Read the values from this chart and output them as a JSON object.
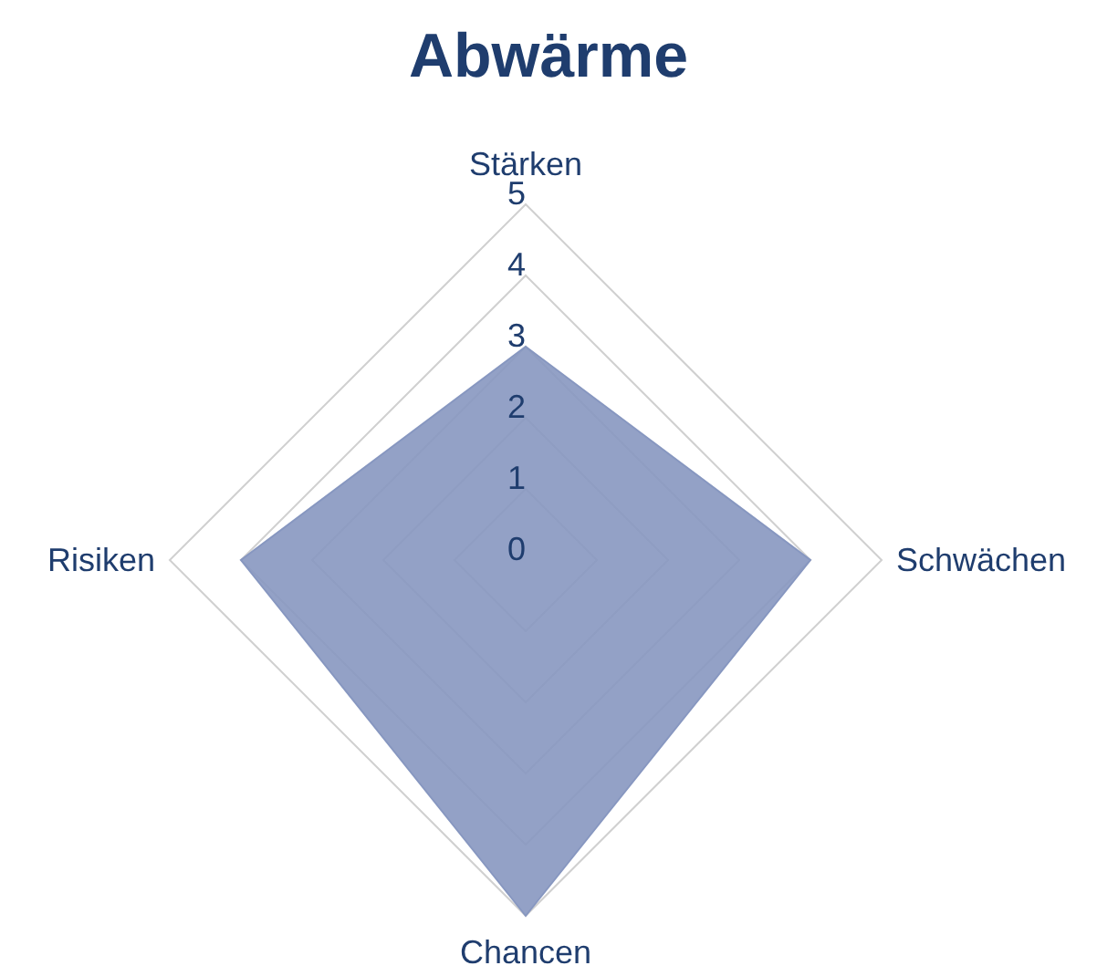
{
  "chart_data": {
    "type": "radar",
    "title": "Abwärme",
    "categories": [
      "Stärken",
      "Schwächen",
      "Chancen",
      "Risiken"
    ],
    "series": [
      {
        "color": "#8797c0",
        "values": [
          3,
          4,
          5,
          4
        ]
      }
    ],
    "ylim": [
      0,
      5
    ],
    "yticks": [
      0,
      1,
      2,
      3,
      4,
      5
    ],
    "grid": true,
    "legend": false
  }
}
